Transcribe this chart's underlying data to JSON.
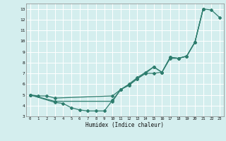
{
  "xlabel": "Humidex (Indice chaleur)",
  "xlim": [
    -0.5,
    23.5
  ],
  "ylim": [
    3,
    13.5
  ],
  "xticks": [
    0,
    1,
    2,
    3,
    4,
    5,
    6,
    7,
    8,
    9,
    10,
    11,
    12,
    13,
    14,
    15,
    16,
    17,
    18,
    19,
    20,
    21,
    22,
    23
  ],
  "yticks": [
    3,
    4,
    5,
    6,
    7,
    8,
    9,
    10,
    11,
    12,
    13
  ],
  "line_color": "#2e7d6e",
  "bg_color": "#d4eeee",
  "grid_color": "#ffffff",
  "line1_x": [
    0,
    1,
    2,
    3,
    10,
    11,
    12,
    13,
    14,
    15,
    16,
    17,
    18,
    19,
    20,
    21,
    22,
    23
  ],
  "line1_y": [
    5,
    4.9,
    4.9,
    4.7,
    4.9,
    5.5,
    6.0,
    6.6,
    7.1,
    7.6,
    7.1,
    8.5,
    8.4,
    8.6,
    9.9,
    13.0,
    12.9,
    12.2
  ],
  "line2_x": [
    0,
    3,
    10,
    11,
    12,
    13,
    14,
    15,
    16,
    17,
    18,
    19,
    20,
    21
  ],
  "line2_y": [
    5,
    4.4,
    4.4,
    5.5,
    5.9,
    6.5,
    7.0,
    7.0,
    7.1,
    8.4,
    8.4,
    8.6,
    9.9,
    13.0
  ],
  "line3_x": [
    0,
    3,
    4,
    5,
    6,
    7,
    8,
    9,
    10,
    11,
    12,
    13,
    14,
    15,
    16,
    17,
    18,
    19,
    20,
    21
  ],
  "line3_y": [
    5,
    4.3,
    4.2,
    3.8,
    3.6,
    3.5,
    3.5,
    3.5,
    4.5,
    5.5,
    5.9,
    6.5,
    7.0,
    7.6,
    7.1,
    8.5,
    8.4,
    8.6,
    9.9,
    13.0
  ]
}
